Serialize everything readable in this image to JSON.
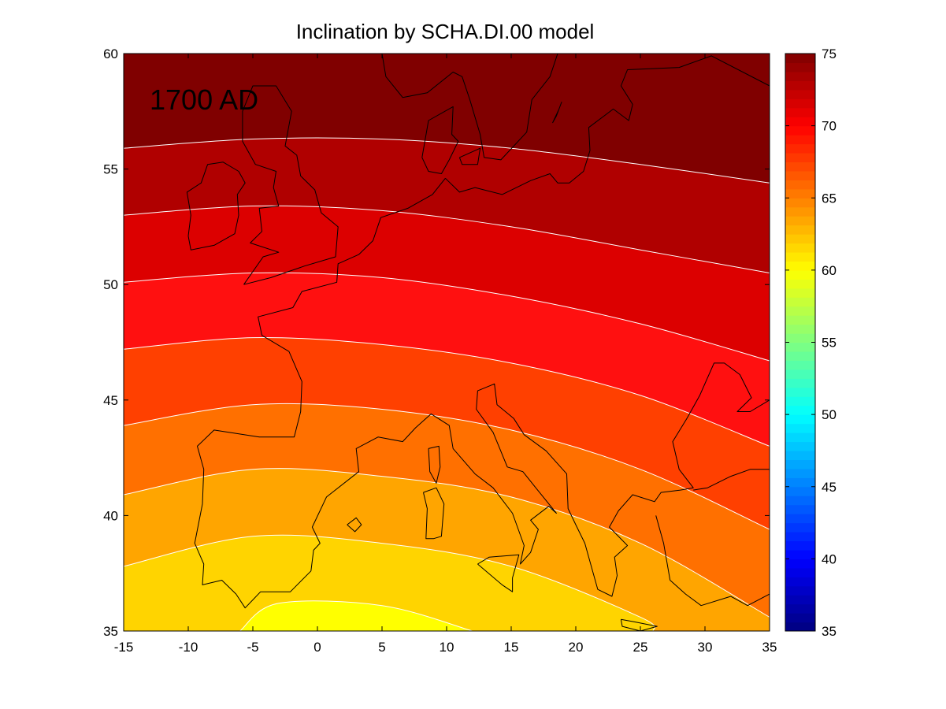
{
  "chart_data": {
    "type": "heatmap",
    "subtype": "filled-contour map",
    "title": "Inclination by SCHA.DI.00 model",
    "annotation": "1700 AD",
    "xlabel": "",
    "ylabel": "",
    "xlim": [
      -15,
      35
    ],
    "ylim": [
      35,
      60
    ],
    "x_ticks": [
      "-15",
      "-10",
      "-5",
      "0",
      "5",
      "10",
      "15",
      "20",
      "25",
      "30",
      "35"
    ],
    "y_ticks": [
      "35",
      "40",
      "45",
      "50",
      "55",
      "60"
    ],
    "colorbar": {
      "range": [
        35,
        75
      ],
      "ticks": [
        "35",
        "40",
        "45",
        "50",
        "55",
        "60",
        "65",
        "70",
        "75"
      ],
      "colormap": "jet"
    },
    "contour_levels": [
      59,
      61,
      63,
      65,
      67,
      69,
      71,
      73
    ],
    "contour_lines": [
      {
        "level": 73,
        "points": [
          [
            -15,
            55.9
          ],
          [
            -5,
            56.3
          ],
          [
            5,
            56.3
          ],
          [
            15,
            55.9
          ],
          [
            25,
            55.2
          ],
          [
            35,
            54.4
          ]
        ]
      },
      {
        "level": 71,
        "points": [
          [
            -15,
            53.0
          ],
          [
            -5,
            53.4
          ],
          [
            5,
            53.2
          ],
          [
            15,
            52.5
          ],
          [
            25,
            51.5
          ],
          [
            35,
            50.5
          ]
        ]
      },
      {
        "level": 69,
        "points": [
          [
            -15,
            50.1
          ],
          [
            -5,
            50.5
          ],
          [
            5,
            50.3
          ],
          [
            15,
            49.5
          ],
          [
            25,
            48.3
          ],
          [
            35,
            46.7
          ]
        ]
      },
      {
        "level": 67,
        "points": [
          [
            -15,
            47.2
          ],
          [
            -5,
            47.7
          ],
          [
            5,
            47.4
          ],
          [
            15,
            46.6
          ],
          [
            25,
            45.2
          ],
          [
            35,
            43.0
          ]
        ]
      },
      {
        "level": 65,
        "points": [
          [
            -15,
            43.9
          ],
          [
            -5,
            44.8
          ],
          [
            5,
            44.6
          ],
          [
            15,
            43.7
          ],
          [
            25,
            42.0
          ],
          [
            35,
            39.4
          ]
        ]
      },
      {
        "level": 63,
        "points": [
          [
            -15,
            40.9
          ],
          [
            -5,
            42.0
          ],
          [
            5,
            41.7
          ],
          [
            15,
            40.8
          ],
          [
            25,
            38.8
          ],
          [
            35,
            35.6
          ]
        ]
      },
      {
        "level": 61,
        "points": [
          [
            -15,
            37.8
          ],
          [
            -5,
            39.1
          ],
          [
            5,
            38.8
          ],
          [
            15,
            37.8
          ],
          [
            25,
            35.6
          ],
          [
            26,
            35.0
          ]
        ]
      },
      {
        "level": 59,
        "points": [
          [
            -6,
            35.0
          ],
          [
            -3,
            36.2
          ],
          [
            5,
            36.1
          ],
          [
            12,
            35.0
          ]
        ]
      }
    ],
    "band_fills": [
      {
        "range": [
          73,
          75
        ],
        "color": "#800000"
      },
      {
        "range": [
          71,
          73
        ],
        "color": "#b00000"
      },
      {
        "range": [
          69,
          71
        ],
        "color": "#dc0000"
      },
      {
        "range": [
          67,
          69
        ],
        "color": "#ff1010"
      },
      {
        "range": [
          65,
          67
        ],
        "color": "#ff4000"
      },
      {
        "range": [
          63,
          65
        ],
        "color": "#ff7000"
      },
      {
        "range": [
          61,
          63
        ],
        "color": "#ffa500"
      },
      {
        "range": [
          59,
          61
        ],
        "color": "#ffd400"
      },
      {
        "range": [
          57,
          59
        ],
        "color": "#ffff00"
      }
    ],
    "coastlines": [
      {
        "name": "ireland",
        "points": [
          [
            -10,
            52.1
          ],
          [
            -9.8,
            53.0
          ],
          [
            -10.1,
            54.0
          ],
          [
            -9.0,
            54.4
          ],
          [
            -8.5,
            55.2
          ],
          [
            -7.3,
            55.3
          ],
          [
            -6.1,
            54.9
          ],
          [
            -5.6,
            54.4
          ],
          [
            -6.2,
            53.9
          ],
          [
            -6.1,
            53.0
          ],
          [
            -6.4,
            52.2
          ],
          [
            -8.0,
            51.7
          ],
          [
            -9.8,
            51.5
          ],
          [
            -10,
            52.1
          ]
        ]
      },
      {
        "name": "great-britain",
        "points": [
          [
            -5.7,
            50.0
          ],
          [
            -3.6,
            50.3
          ],
          [
            -1.0,
            50.8
          ],
          [
            1.4,
            51.2
          ],
          [
            1.6,
            52.5
          ],
          [
            0.3,
            53.1
          ],
          [
            -0.2,
            54.1
          ],
          [
            -1.3,
            54.7
          ],
          [
            -1.6,
            55.6
          ],
          [
            -2.5,
            56.0
          ],
          [
            -2.0,
            57.5
          ],
          [
            -3.2,
            58.6
          ],
          [
            -5.0,
            58.6
          ],
          [
            -5.8,
            57.5
          ],
          [
            -5.8,
            56.2
          ],
          [
            -4.8,
            55.2
          ],
          [
            -3.2,
            54.9
          ],
          [
            -3.4,
            54.2
          ],
          [
            -3.0,
            53.4
          ],
          [
            -4.5,
            53.3
          ],
          [
            -4.3,
            52.3
          ],
          [
            -5.2,
            51.8
          ],
          [
            -3.0,
            51.4
          ],
          [
            -4.2,
            51.2
          ],
          [
            -5.7,
            50.0
          ]
        ]
      },
      {
        "name": "denmark",
        "points": [
          [
            8.1,
            55.5
          ],
          [
            8.6,
            57.1
          ],
          [
            10.5,
            57.7
          ],
          [
            10.4,
            56.5
          ],
          [
            10.9,
            56.2
          ],
          [
            10.2,
            55.4
          ],
          [
            9.6,
            54.8
          ],
          [
            8.6,
            54.9
          ],
          [
            8.1,
            55.5
          ]
        ]
      },
      {
        "name": "zealand",
        "points": [
          [
            11.0,
            55.5
          ],
          [
            12.6,
            55.9
          ],
          [
            12.4,
            55.2
          ],
          [
            11.2,
            55.2
          ],
          [
            11.0,
            55.5
          ]
        ]
      },
      {
        "name": "scandinavia",
        "points": [
          [
            5.0,
            60.0
          ],
          [
            5.3,
            59.0
          ],
          [
            6.6,
            58.1
          ],
          [
            8.5,
            58.3
          ],
          [
            10.5,
            59.2
          ],
          [
            11.2,
            59.0
          ],
          [
            11.8,
            58.0
          ],
          [
            12.6,
            56.5
          ],
          [
            12.9,
            55.5
          ],
          [
            14.2,
            55.4
          ],
          [
            16.2,
            56.6
          ],
          [
            16.6,
            58.0
          ],
          [
            18.0,
            59.0
          ],
          [
            18.6,
            60.0
          ]
        ]
      },
      {
        "name": "baltic-east",
        "points": [
          [
            35,
            58.6
          ],
          [
            30.5,
            59.9
          ],
          [
            28.0,
            59.4
          ],
          [
            24.0,
            59.3
          ],
          [
            23.5,
            58.6
          ],
          [
            24.4,
            57.8
          ],
          [
            24.1,
            57.1
          ],
          [
            22.9,
            57.6
          ],
          [
            21.0,
            56.8
          ],
          [
            21.1,
            55.8
          ],
          [
            20.6,
            54.9
          ],
          [
            19.5,
            54.4
          ],
          [
            18.6,
            54.4
          ],
          [
            18.0,
            54.8
          ],
          [
            16.5,
            54.5
          ],
          [
            14.3,
            53.9
          ],
          [
            12.2,
            54.2
          ],
          [
            11.0,
            54.0
          ],
          [
            9.9,
            54.6
          ]
        ]
      },
      {
        "name": "gotland",
        "points": [
          [
            18.2,
            57.0
          ],
          [
            18.7,
            57.6
          ],
          [
            18.9,
            57.9
          ],
          [
            18.5,
            57.3
          ],
          [
            18.2,
            57.0
          ]
        ]
      },
      {
        "name": "continent-atlantic",
        "points": [
          [
            9.9,
            54.6
          ],
          [
            8.9,
            53.9
          ],
          [
            7.0,
            53.3
          ],
          [
            4.9,
            52.9
          ],
          [
            4.3,
            51.9
          ],
          [
            3.2,
            51.3
          ],
          [
            1.6,
            50.9
          ],
          [
            1.5,
            50.1
          ],
          [
            -1.2,
            49.7
          ],
          [
            -1.9,
            49.0
          ],
          [
            -4.6,
            48.6
          ],
          [
            -4.3,
            47.8
          ],
          [
            -2.2,
            47.1
          ],
          [
            -1.2,
            45.8
          ],
          [
            -1.3,
            44.5
          ],
          [
            -1.8,
            43.4
          ],
          [
            -4.5,
            43.4
          ],
          [
            -8.0,
            43.7
          ],
          [
            -9.3,
            43.0
          ],
          [
            -8.8,
            42.0
          ],
          [
            -8.9,
            40.5
          ],
          [
            -9.5,
            38.8
          ],
          [
            -8.8,
            37.9
          ],
          [
            -8.9,
            37.0
          ],
          [
            -7.4,
            37.2
          ],
          [
            -6.3,
            36.6
          ],
          [
            -5.6,
            36.0
          ],
          [
            -4.4,
            36.7
          ],
          [
            -2.1,
            36.7
          ],
          [
            -0.5,
            37.6
          ],
          [
            -0.3,
            38.5
          ],
          [
            0.2,
            38.8
          ],
          [
            -0.4,
            39.5
          ],
          [
            0.7,
            40.8
          ],
          [
            3.2,
            41.9
          ],
          [
            3.0,
            42.9
          ],
          [
            4.7,
            43.4
          ],
          [
            6.6,
            43.2
          ],
          [
            7.6,
            43.8
          ],
          [
            8.8,
            44.4
          ],
          [
            10.2,
            43.9
          ],
          [
            10.5,
            42.9
          ],
          [
            12.2,
            41.8
          ],
          [
            13.6,
            41.2
          ],
          [
            15.1,
            40.1
          ],
          [
            16.0,
            38.7
          ],
          [
            15.7,
            37.9
          ],
          [
            16.5,
            38.4
          ],
          [
            17.1,
            39.4
          ],
          [
            16.5,
            39.8
          ],
          [
            17.9,
            40.4
          ],
          [
            18.5,
            40.1
          ],
          [
            16.9,
            41.2
          ],
          [
            15.9,
            41.9
          ],
          [
            14.7,
            42.1
          ],
          [
            13.6,
            43.6
          ],
          [
            12.3,
            44.6
          ],
          [
            12.4,
            45.4
          ],
          [
            13.7,
            45.7
          ],
          [
            13.9,
            44.8
          ],
          [
            15.2,
            44.2
          ],
          [
            16.0,
            43.5
          ],
          [
            17.7,
            42.8
          ],
          [
            19.3,
            41.8
          ],
          [
            19.4,
            40.3
          ],
          [
            20.0,
            39.6
          ],
          [
            20.7,
            38.8
          ],
          [
            21.3,
            37.6
          ],
          [
            21.7,
            36.8
          ],
          [
            22.8,
            36.5
          ],
          [
            23.2,
            37.4
          ],
          [
            23.0,
            38.2
          ],
          [
            24.0,
            38.7
          ],
          [
            22.6,
            39.5
          ],
          [
            23.3,
            40.2
          ],
          [
            24.4,
            40.9
          ],
          [
            26.1,
            40.6
          ],
          [
            26.6,
            41.0
          ],
          [
            28.1,
            41.1
          ],
          [
            29.1,
            41.2
          ],
          [
            28.0,
            42.0
          ],
          [
            27.5,
            43.2
          ],
          [
            28.6,
            44.2
          ],
          [
            29.6,
            45.2
          ],
          [
            30.7,
            46.6
          ],
          [
            31.5,
            46.6
          ],
          [
            32.7,
            46.1
          ],
          [
            33.6,
            45.1
          ],
          [
            32.5,
            44.5
          ],
          [
            33.5,
            44.5
          ],
          [
            35.0,
            45.0
          ]
        ]
      },
      {
        "name": "anatolia",
        "points": [
          [
            26.2,
            40.0
          ],
          [
            26.8,
            38.8
          ],
          [
            27.3,
            37.2
          ],
          [
            28.5,
            36.6
          ],
          [
            29.7,
            36.1
          ],
          [
            32.0,
            36.5
          ],
          [
            33.3,
            36.1
          ],
          [
            35.0,
            36.6
          ]
        ]
      },
      {
        "name": "black-sea-south",
        "points": [
          [
            29.1,
            41.1
          ],
          [
            30.2,
            41.2
          ],
          [
            32.0,
            41.7
          ],
          [
            33.5,
            42.0
          ],
          [
            35.0,
            42.0
          ]
        ]
      },
      {
        "name": "corsica",
        "points": [
          [
            8.6,
            42.9
          ],
          [
            9.4,
            43.0
          ],
          [
            9.5,
            42.1
          ],
          [
            9.2,
            41.4
          ],
          [
            8.7,
            41.9
          ],
          [
            8.6,
            42.9
          ]
        ]
      },
      {
        "name": "sardinia",
        "points": [
          [
            8.2,
            41.0
          ],
          [
            9.2,
            41.2
          ],
          [
            9.8,
            40.5
          ],
          [
            9.6,
            39.1
          ],
          [
            9.0,
            39.0
          ],
          [
            8.4,
            39.0
          ],
          [
            8.5,
            40.3
          ],
          [
            8.2,
            41.0
          ]
        ]
      },
      {
        "name": "sicily",
        "points": [
          [
            12.4,
            37.9
          ],
          [
            13.3,
            38.2
          ],
          [
            15.6,
            38.3
          ],
          [
            15.1,
            37.3
          ],
          [
            15.1,
            36.7
          ],
          [
            14.3,
            37.0
          ],
          [
            12.4,
            37.9
          ]
        ]
      },
      {
        "name": "crete",
        "points": [
          [
            23.5,
            35.5
          ],
          [
            24.5,
            35.4
          ],
          [
            26.3,
            35.2
          ],
          [
            25.0,
            35.0
          ],
          [
            23.6,
            35.2
          ],
          [
            23.5,
            35.5
          ]
        ]
      },
      {
        "name": "mallorca",
        "points": [
          [
            2.3,
            39.6
          ],
          [
            3.0,
            39.9
          ],
          [
            3.4,
            39.6
          ],
          [
            2.9,
            39.3
          ],
          [
            2.3,
            39.6
          ]
        ]
      }
    ]
  }
}
